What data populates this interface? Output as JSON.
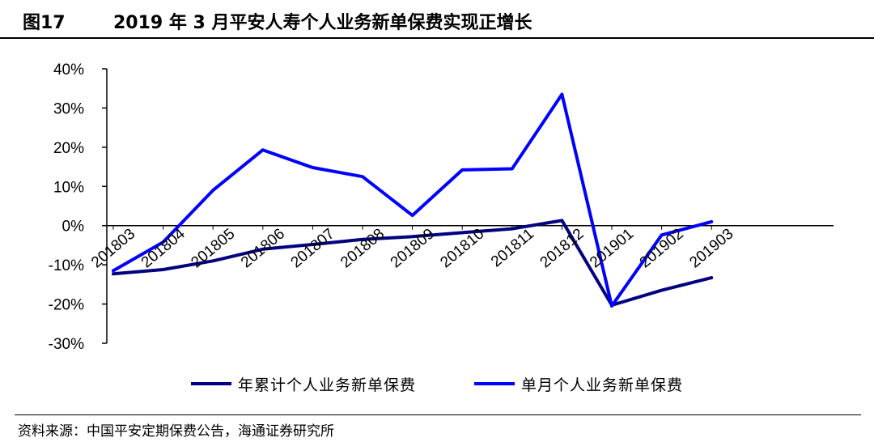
{
  "header": {
    "figure_number": "图17",
    "title": "2019 年 3 月平安人寿个人业务新单保费实现正增长"
  },
  "source": "资料来源：中国平安定期保费公告，海通证券研究所",
  "chart_data": {
    "type": "line",
    "categories": [
      "201803",
      "201804",
      "201805",
      "201806",
      "201807",
      "201808",
      "201809",
      "201810",
      "201811",
      "201812",
      "201901",
      "201902",
      "201903"
    ],
    "ylim": [
      -30,
      40
    ],
    "yticks": [
      -30,
      -20,
      -10,
      0,
      10,
      20,
      30,
      40
    ],
    "ytick_labels": [
      "-30%",
      "-20%",
      "-10%",
      "0%",
      "10%",
      "20%",
      "30%",
      "40%"
    ],
    "grid": false,
    "legend_placement": "bottom",
    "series": [
      {
        "name": "年累计个人业务新单保费",
        "color": "#000080",
        "values": [
          -12.3,
          -11.2,
          -9.0,
          -6.0,
          -4.8,
          -3.5,
          -2.8,
          -1.8,
          -0.8,
          1.3,
          -20.3,
          -16.5,
          -13.3
        ]
      },
      {
        "name": "单月个人业务新单保费",
        "color": "#0000FF",
        "values": [
          -11.5,
          -4.2,
          9.0,
          19.3,
          14.8,
          12.5,
          2.6,
          14.2,
          14.5,
          33.5,
          -20.5,
          -2.4,
          1.0
        ]
      }
    ]
  }
}
